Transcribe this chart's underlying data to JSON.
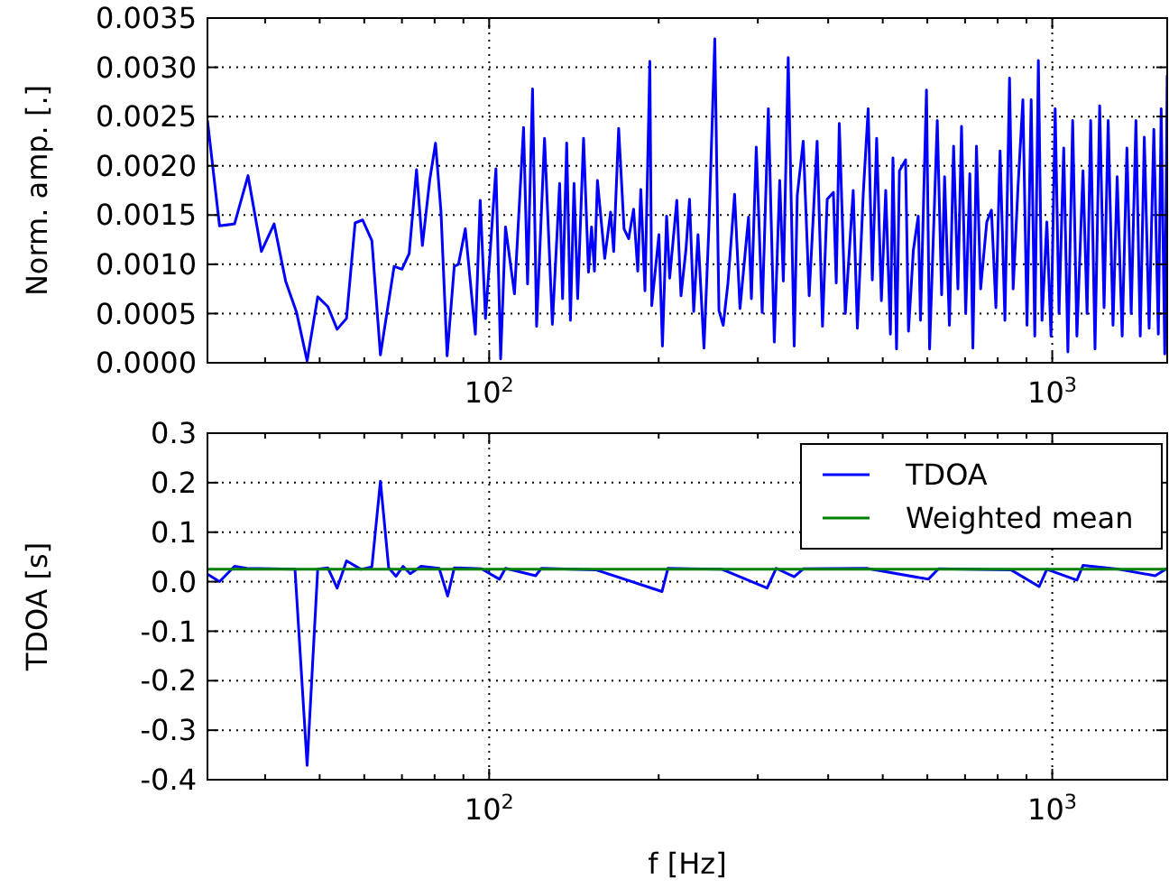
{
  "chart_data": [
    {
      "type": "line",
      "ylabel": "Norm. amp.  [.]",
      "log": "x",
      "grid": true,
      "legend": false,
      "xlim": [
        31.6,
        1600
      ],
      "xticks": [
        {
          "value": 40,
          "label": null
        },
        {
          "value": 50,
          "label": null
        },
        {
          "value": 60,
          "label": null
        },
        {
          "value": 70,
          "label": null
        },
        {
          "value": 80,
          "label": null
        },
        {
          "value": 90,
          "label": null
        },
        {
          "value": 100,
          "label": "10$^{2}$"
        },
        {
          "value": 200,
          "label": null
        },
        {
          "value": 300,
          "label": null
        },
        {
          "value": 400,
          "label": null
        },
        {
          "value": 500,
          "label": null
        },
        {
          "value": 600,
          "label": null
        },
        {
          "value": 700,
          "label": null
        },
        {
          "value": 800,
          "label": null
        },
        {
          "value": 900,
          "label": null
        },
        {
          "value": 1000,
          "label": "10$^{3}$"
        }
      ],
      "ylim": [
        0,
        0.0035
      ],
      "yticks": [
        {
          "value": 0,
          "label": "0.0000"
        },
        {
          "value": 0.0005,
          "label": "0.0005"
        },
        {
          "value": 0.001,
          "label": "0.0010"
        },
        {
          "value": 0.0015,
          "label": "0.0015"
        },
        {
          "value": 0.002,
          "label": "0.0020"
        },
        {
          "value": 0.0025,
          "label": "0.0025"
        },
        {
          "value": 0.003,
          "label": "0.0030"
        },
        {
          "value": 0.0035,
          "label": "0.0035"
        }
      ],
      "series": [
        {
          "color": "#0000ff",
          "x": [
            31.6,
            33.2,
            35.3,
            37.3,
            39.4,
            41.5,
            43.5,
            45.5,
            47.5,
            49.6,
            51.7,
            53.7,
            55.8,
            57.8,
            59.6,
            61.9,
            64.1,
            67.8,
            70.0,
            72.1,
            74.3,
            76.1,
            78.4,
            80.3,
            82.1,
            84.2,
            86.7,
            88.2,
            90.7,
            94.5,
            96.4,
            98.5,
            102.8,
            104.8,
            106.9,
            110.9,
            115.1,
            117.0,
            119.4,
            121.4,
            125.4,
            129.5,
            133.4,
            135.0,
            137.3,
            139.4,
            141.5,
            143.6,
            147.1,
            150.1,
            152.0,
            153.8,
            155.7,
            160.4,
            164.3,
            166.4,
            169.8,
            173.6,
            176.9,
            180.5,
            183.6,
            185.9,
            189.1,
            192.9,
            194.4,
            200.2,
            203.1,
            206.6,
            209.2,
            215.4,
            219.1,
            223.6,
            226.9,
            230.8,
            234.9,
            240.7,
            245.6,
            251.6,
            255.9,
            260.4,
            265.5,
            272.8,
            278.9,
            288.8,
            292.2,
            298.1,
            305.4,
            313.2,
            320.9,
            328.1,
            333.0,
            339.7,
            348.1,
            352.5,
            361.2,
            370.1,
            382.3,
            390.8,
            398.4,
            408.6,
            413.4,
            418.6,
            429.0,
            443.1,
            450.7,
            461.8,
            471.1,
            479.1,
            487.7,
            497.2,
            506.1,
            515.9,
            521.3,
            529.0,
            535.3,
            548.9,
            555.5,
            566.6,
            578.1,
            583.4,
            597.9,
            605.5,
            624.9,
            636.1,
            643.8,
            656.7,
            668.0,
            679.9,
            690.0,
            701.9,
            713.8,
            722.8,
            733.5,
            746.1,
            765.1,
            779.8,
            794.2,
            807.8,
            824.0,
            839.7,
            852.2,
            869.2,
            886.8,
            901.9,
            917.4,
            931.0,
            944.8,
            958.9,
            978.1,
            994.9,
            1012,
            1028,
            1048,
            1066,
            1087,
            1106,
            1134,
            1153,
            1170,
            1191,
            1214,
            1236,
            1257,
            1282,
            1304,
            1331,
            1357,
            1381,
            1408,
            1433,
            1457,
            1486,
            1515,
            1543,
            1561,
            1584,
            1600
          ],
          "values": [
            0.00246,
            0.00139,
            0.00141,
            0.0019,
            0.00113,
            0.00141,
            0.00083,
            0.00051,
            2e-05,
            0.00067,
            0.00057,
            0.00034,
            0.00045,
            0.00142,
            0.00145,
            0.00124,
            8e-05,
            0.00098,
            0.00095,
            0.00111,
            0.00196,
            0.00119,
            0.00185,
            0.00223,
            0.00154,
            7e-05,
            0.00098,
            0.001,
            0.00136,
            0.00029,
            0.00165,
            0.00045,
            0.00197,
            4e-05,
            0.00138,
            0.0007,
            0.00239,
            0.0008,
            0.00278,
            0.00037,
            0.00228,
            0.00039,
            0.00182,
            0.00065,
            0.00223,
            0.00043,
            0.00182,
            0.00065,
            0.00228,
            0.00092,
            0.00138,
            0.00093,
            0.00185,
            0.00106,
            0.00153,
            0.00113,
            0.00238,
            0.00136,
            0.00126,
            0.00156,
            0.00093,
            0.00176,
            0.00073,
            0.00306,
            0.00058,
            0.0013,
            0.00017,
            0.00149,
            0.00086,
            0.00165,
            0.00068,
            0.00115,
            0.00166,
            0.00052,
            0.0013,
            0.00015,
            0.00138,
            0.00329,
            0.00053,
            0.00038,
            0.00081,
            0.00171,
            0.00055,
            0.00148,
            0.00065,
            0.00219,
            0.00051,
            0.00258,
            0.00021,
            0.00185,
            0.00083,
            0.0031,
            0.00017,
            0.0017,
            0.00225,
            0.00068,
            0.00225,
            0.00037,
            0.00166,
            0.00173,
            0.00081,
            0.00243,
            0.0005,
            0.00175,
            0.00035,
            0.00173,
            0.00258,
            0.00084,
            0.00228,
            0.00063,
            0.00175,
            0.00029,
            0.00208,
            0.00014,
            0.00195,
            0.00206,
            0.00032,
            0.00114,
            0.00149,
            0.00043,
            0.00277,
            0.00014,
            0.00246,
            0.00069,
            0.00189,
            0.00038,
            0.0022,
            0.00075,
            0.0024,
            0.0005,
            0.00192,
            0.00015,
            0.0022,
            0.00075,
            0.00143,
            0.00155,
            0.00056,
            0.00215,
            0.00043,
            0.00289,
            0.00075,
            0.00178,
            0.00267,
            0.00038,
            0.00267,
            0.00027,
            0.00307,
            0.00043,
            0.00143,
            0.00027,
            0.00258,
            0.0005,
            0.00218,
            0.00011,
            0.00246,
            0.00027,
            0.00195,
            0.0005,
            0.00246,
            0.00014,
            0.00261,
            0.00056,
            0.00246,
            0.00038,
            0.00189,
            0.00027,
            0.00218,
            0.0005,
            0.00246,
            0.00027,
            0.00229,
            0.00035,
            0.00237,
            0.00029,
            0.00258,
            9e-05,
            0.00292
          ]
        }
      ]
    },
    {
      "type": "line",
      "xlabel": "f  [Hz]",
      "ylabel": "TDOA  [s]",
      "log": "x",
      "grid": true,
      "legend": "top right",
      "xlim": [
        31.6,
        1600
      ],
      "xticks": [
        {
          "value": 40,
          "label": null
        },
        {
          "value": 50,
          "label": null
        },
        {
          "value": 60,
          "label": null
        },
        {
          "value": 70,
          "label": null
        },
        {
          "value": 80,
          "label": null
        },
        {
          "value": 90,
          "label": null
        },
        {
          "value": 100,
          "label": "10$^{2}$"
        },
        {
          "value": 200,
          "label": null
        },
        {
          "value": 300,
          "label": null
        },
        {
          "value": 400,
          "label": null
        },
        {
          "value": 500,
          "label": null
        },
        {
          "value": 600,
          "label": null
        },
        {
          "value": 700,
          "label": null
        },
        {
          "value": 800,
          "label": null
        },
        {
          "value": 900,
          "label": null
        },
        {
          "value": 1000,
          "label": "10$^{3}$"
        }
      ],
      "ylim": [
        -0.4,
        0.3
      ],
      "yticks": [
        -0.4,
        -0.3,
        -0.2,
        -0.1,
        {
          "value": 0,
          "label": "0.0"
        },
        0.1,
        0.2,
        0.3
      ],
      "series": [
        {
          "name": "TDOA",
          "color": "#0000ff",
          "x": [
            31.6,
            33.2,
            35.3,
            37.1,
            45.2,
            47.5,
            49.6,
            51.7,
            53.7,
            55.8,
            59.2,
            61.9,
            64.1,
            66.3,
            68.3,
            70.3,
            72.4,
            75.7,
            81.5,
            84.4,
            86.7,
            96.9,
            104.3,
            106.9,
            120.9,
            123.8,
            154.6,
            202.7,
            207.7,
            259.1,
            311.6,
            323.3,
            348.1,
            361.2,
            467.7,
            602.3,
            628.2,
            844.1,
            947.6,
            978.1,
            1106,
            1134,
            1314,
            1523,
            1600
          ],
          "values": [
            0.015,
            0.0,
            0.031,
            0.027,
            0.025,
            -0.371,
            0.025,
            0.028,
            -0.013,
            0.042,
            0.025,
            0.03,
            0.203,
            0.028,
            0.011,
            0.031,
            0.016,
            0.031,
            0.027,
            -0.029,
            0.028,
            0.026,
            0.005,
            0.027,
            0.012,
            0.027,
            0.024,
            -0.02,
            0.027,
            0.025,
            -0.013,
            0.027,
            0.01,
            0.026,
            0.027,
            0.005,
            0.026,
            0.024,
            -0.01,
            0.025,
            0.003,
            0.033,
            0.025,
            0.012,
            0.027
          ]
        },
        {
          "name": "Weighted mean",
          "color": "#008000",
          "x": [
            31.6,
            1600
          ],
          "values": [
            0.025,
            0.025
          ]
        }
      ]
    }
  ]
}
